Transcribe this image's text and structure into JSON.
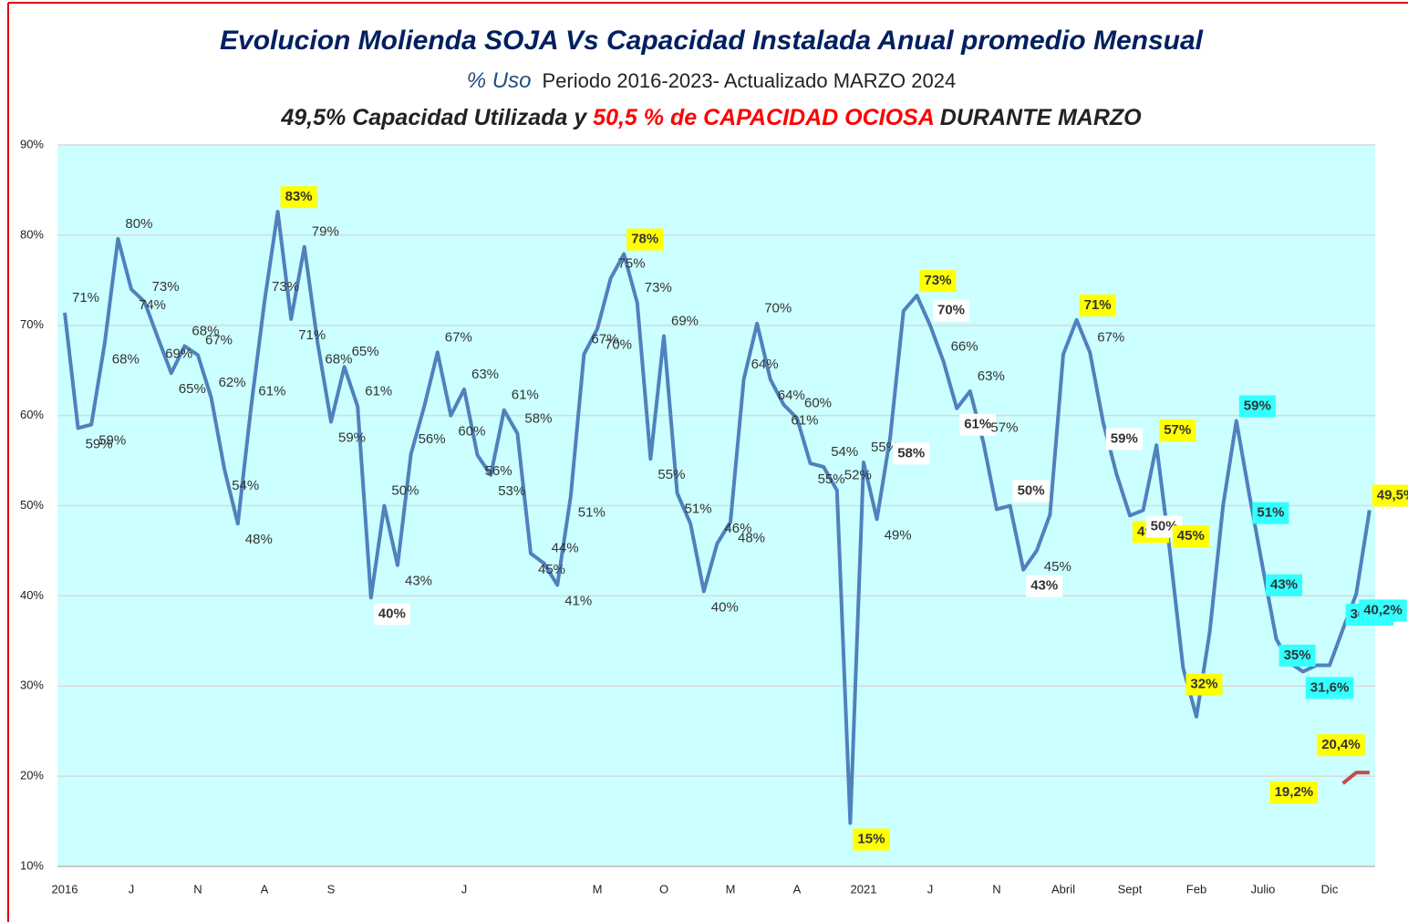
{
  "chart_data": {
    "type": "line",
    "title": "Evolucion Molienda  SOJA Vs Capacidad Instalada Anual promedio Mensual",
    "subtitle": {
      "unit": "% Uso",
      "text": "Periodo  2016-2023-  Actualizado  MARZO   2024"
    },
    "annotation": {
      "part1": "49,5% Capacidad Utilizada y ",
      "part2": "50,5 % de CAPACIDAD OCIOSA",
      "part3": " DURANTE MARZO"
    },
    "categories": [
      "2016",
      null,
      null,
      null,
      null,
      "J",
      null,
      null,
      null,
      null,
      "N",
      null,
      null,
      null,
      null,
      "A",
      null,
      null,
      null,
      null,
      "S",
      null,
      null,
      null,
      null,
      null,
      null,
      null,
      null,
      null,
      "J",
      null,
      null,
      null,
      null,
      null,
      null,
      null,
      null,
      null,
      "M",
      null,
      null,
      null,
      null,
      "O",
      null,
      null,
      null,
      null,
      "M",
      null,
      null,
      null,
      null,
      "A",
      null,
      null,
      null,
      null,
      "2021",
      null,
      null,
      null,
      null,
      "J",
      null,
      null,
      null,
      null,
      "N",
      null,
      null,
      null,
      null,
      "Abril",
      null,
      null,
      null,
      null,
      "Sept",
      null,
      null,
      null,
      null,
      "Feb",
      null,
      null,
      null,
      null,
      "Julio",
      null,
      null,
      null,
      null,
      "Dic",
      null,
      null,
      null
    ],
    "series": [
      {
        "color": "#4f81bd",
        "values": [
          71.4,
          58.6,
          59,
          68,
          79.6,
          74,
          72.6,
          68.6,
          64.7,
          67.7,
          66.7,
          62,
          54,
          48,
          61,
          72.6,
          82.6,
          70.7,
          78.7,
          68,
          59.3,
          65.4,
          61,
          39.8,
          50,
          43.4,
          55.7,
          61,
          67,
          60,
          62.9,
          55.6,
          53.4,
          60.6,
          58,
          44.7,
          43.6,
          41.2,
          51,
          66.8,
          69.6,
          75.2,
          77.9,
          72.5,
          55.2,
          68.8,
          51.4,
          48,
          40.5,
          45.8,
          48.2,
          64,
          70.2,
          64,
          61.2,
          59.7,
          54.7,
          54.3,
          51.7,
          14.8,
          54.8,
          48.5,
          57.6,
          71.6,
          73.3,
          70,
          66,
          60.8,
          62.7,
          57,
          49.6,
          50,
          42.9,
          45,
          49,
          66.8,
          70.6,
          67,
          59.2,
          53.5,
          48.9,
          49.5,
          56.7,
          45,
          32,
          26.6,
          36,
          50,
          59.4,
          51,
          43,
          35.2,
          32.6,
          31.6,
          32.3,
          32.3,
          36.3,
          40.2,
          49.5
        ],
        "value_labels": [
          "71%",
          "59%",
          "59%",
          "68%",
          "80%",
          "74%",
          "73%",
          "69%",
          "65%",
          "68%",
          "67%",
          "62%",
          "54%",
          "48%",
          "61%",
          "73%",
          "83%",
          "71%",
          "79%",
          "68%",
          "59%",
          "65%",
          "61%",
          "40%",
          "50%",
          "43%",
          "56%",
          null,
          "67%",
          "60%",
          "63%",
          "56%",
          "53%",
          "61%",
          "58%",
          "45%",
          "44%",
          "41%",
          "51%",
          "67%",
          "70%",
          "75%",
          "78%",
          "73%",
          "55%",
          "69%",
          "51%",
          null,
          "40%",
          "46%",
          "48%",
          "64%",
          "70%",
          "64%",
          "61%",
          "60%",
          "55%",
          "54%",
          "52%",
          "15%",
          "55%",
          "49%",
          "58%",
          null,
          "73%",
          "70%",
          "66%",
          "61%",
          "63%",
          "57%",
          null,
          "50%",
          "43%",
          "45%",
          null,
          null,
          "71%",
          "67%",
          "59%",
          null,
          "49%",
          "50%",
          "57%",
          "45%",
          "32%",
          null,
          null,
          null,
          "59%",
          "51%",
          "43%",
          "35%",
          null,
          "31,6%",
          null,
          null,
          "36,3%",
          "40,2%",
          "49,5%"
        ],
        "label_colors": [
          null,
          null,
          null,
          null,
          null,
          null,
          null,
          null,
          null,
          null,
          null,
          null,
          null,
          null,
          null,
          null,
          "#ffff00",
          null,
          null,
          null,
          null,
          null,
          null,
          "#ffffff",
          null,
          null,
          null,
          null,
          null,
          null,
          null,
          null,
          null,
          null,
          null,
          null,
          null,
          null,
          null,
          null,
          null,
          null,
          "#ffff00",
          null,
          null,
          null,
          null,
          null,
          null,
          null,
          null,
          null,
          null,
          null,
          null,
          null,
          null,
          null,
          null,
          "#ffff00",
          null,
          null,
          "#ffffff",
          null,
          "#ffff00",
          "#ffffff",
          null,
          "#ffffff",
          null,
          null,
          null,
          "#ffffff",
          "#ffffff",
          null,
          null,
          null,
          "#ffff00",
          null,
          "#ffffff",
          null,
          "#ffff00",
          "#ffffff",
          "#ffff00",
          "#ffff00",
          "#ffff00",
          null,
          null,
          null,
          "#33ffff",
          "#33ffff",
          "#33ffff",
          "#33ffff",
          null,
          "#33ffff",
          null,
          null,
          "#33ffff",
          "#33ffff",
          "#ffff00"
        ]
      },
      {
        "color": "#c0504d",
        "values": [
          null,
          null,
          null,
          null,
          null,
          null,
          null,
          null,
          null,
          null,
          null,
          null,
          null,
          null,
          null,
          null,
          null,
          null,
          null,
          null,
          null,
          null,
          null,
          null,
          null,
          null,
          null,
          null,
          null,
          null,
          null,
          null,
          null,
          null,
          null,
          null,
          null,
          null,
          null,
          null,
          null,
          null,
          null,
          null,
          null,
          null,
          null,
          null,
          null,
          null,
          null,
          null,
          null,
          null,
          null,
          null,
          null,
          null,
          null,
          null,
          null,
          null,
          null,
          null,
          null,
          null,
          null,
          null,
          null,
          null,
          null,
          null,
          null,
          null,
          null,
          null,
          null,
          null,
          null,
          null,
          null,
          null,
          null,
          null,
          null,
          null,
          null,
          null,
          null,
          null,
          null,
          null,
          null,
          null,
          null,
          null,
          19.2,
          20.4,
          20.4
        ],
        "value_labels": [
          null,
          null,
          null,
          null,
          null,
          null,
          null,
          null,
          null,
          null,
          null,
          null,
          null,
          null,
          null,
          null,
          null,
          null,
          null,
          null,
          null,
          null,
          null,
          null,
          null,
          null,
          null,
          null,
          null,
          null,
          null,
          null,
          null,
          null,
          null,
          null,
          null,
          null,
          null,
          null,
          null,
          null,
          null,
          null,
          null,
          null,
          null,
          null,
          null,
          null,
          null,
          null,
          null,
          null,
          null,
          null,
          null,
          null,
          null,
          null,
          null,
          null,
          null,
          null,
          null,
          null,
          null,
          null,
          null,
          null,
          null,
          null,
          null,
          null,
          null,
          null,
          null,
          null,
          null,
          null,
          null,
          null,
          null,
          null,
          null,
          null,
          null,
          null,
          null,
          null,
          null,
          null,
          null,
          null,
          null,
          null,
          "19,2%",
          "20,4%",
          null
        ],
        "label_colors": [
          null,
          null,
          null,
          null,
          null,
          null,
          null,
          null,
          null,
          null,
          null,
          null,
          null,
          null,
          null,
          null,
          null,
          null,
          null,
          null,
          null,
          null,
          null,
          null,
          null,
          null,
          null,
          null,
          null,
          null,
          null,
          null,
          null,
          null,
          null,
          null,
          null,
          null,
          null,
          null,
          null,
          null,
          null,
          null,
          null,
          null,
          null,
          null,
          null,
          null,
          null,
          null,
          null,
          null,
          null,
          null,
          null,
          null,
          null,
          null,
          null,
          null,
          null,
          null,
          null,
          null,
          null,
          null,
          null,
          null,
          null,
          null,
          null,
          null,
          null,
          null,
          null,
          null,
          null,
          null,
          null,
          null,
          null,
          null,
          null,
          null,
          null,
          null,
          null,
          null,
          null,
          null,
          null,
          null,
          null,
          null,
          "#ffff00",
          "#ffff00",
          null
        ]
      }
    ],
    "ylim": [
      10,
      90
    ],
    "yticks": [
      {
        "value": 10,
        "label": "10%"
      },
      {
        "value": 20,
        "label": "20%"
      },
      {
        "value": 30,
        "label": "30%"
      },
      {
        "value": 40,
        "label": "40%"
      },
      {
        "value": 50,
        "label": "50%"
      },
      {
        "value": 60,
        "label": "60%"
      },
      {
        "value": 70,
        "label": "70%"
      },
      {
        "value": 80,
        "label": "80%"
      },
      {
        "value": 90,
        "label": "90%"
      }
    ],
    "grid": true,
    "plot_background": "#ccffff"
  }
}
